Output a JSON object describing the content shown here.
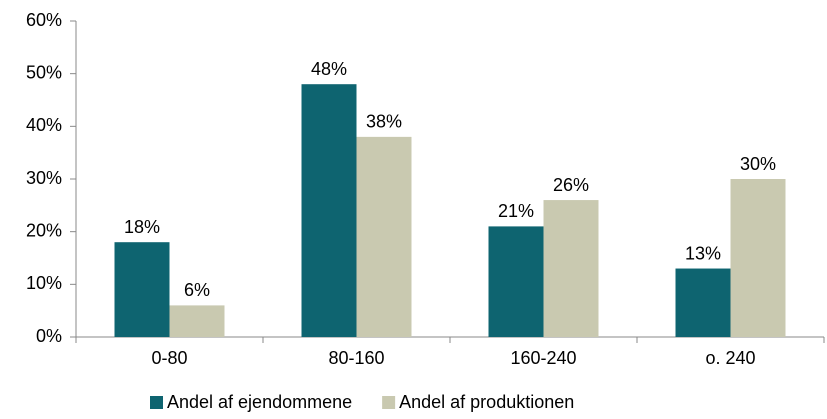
{
  "chart_data": {
    "type": "bar",
    "categories": [
      "0-80",
      "80-160",
      "160-240",
      "o. 240"
    ],
    "series": [
      {
        "name": "Andel af ejendommene",
        "color": "#0e6470",
        "values": [
          18,
          48,
          21,
          13
        ],
        "value_labels": [
          "18%",
          "48%",
          "21%",
          "13%"
        ]
      },
      {
        "name": "Andel af produktionen",
        "color": "#c9c9b0",
        "values": [
          6,
          38,
          26,
          30
        ],
        "value_labels": [
          "6%",
          "38%",
          "26%",
          "30%"
        ]
      }
    ],
    "ylim": [
      0,
      60
    ],
    "yticks": [
      {
        "value": 0,
        "label": "0%"
      },
      {
        "value": 10,
        "label": "10%"
      },
      {
        "value": 20,
        "label": "20%"
      },
      {
        "value": 30,
        "label": "30%"
      },
      {
        "value": 40,
        "label": "40%"
      },
      {
        "value": 50,
        "label": "50%"
      },
      {
        "value": 60,
        "label": "60%"
      }
    ],
    "legend": "bottom"
  }
}
